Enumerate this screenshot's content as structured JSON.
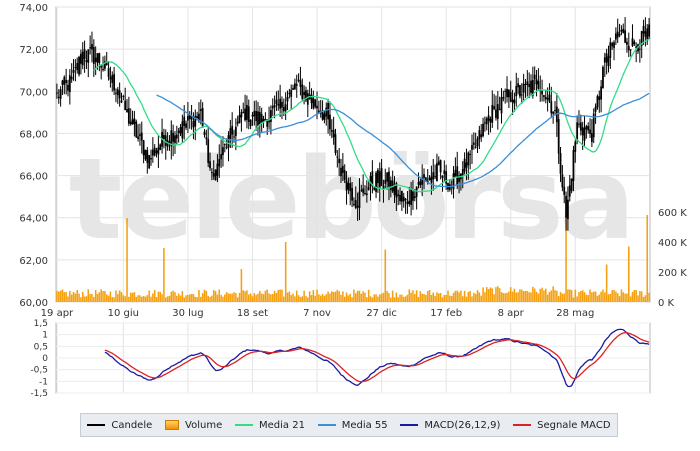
{
  "watermark": "telebörsa",
  "chart_data": [
    {
      "type": "candlestick",
      "panel": "price",
      "y_ticks": [
        "74,00",
        "72,00",
        "70,00",
        "68,00",
        "66,00",
        "64,00",
        "62,00",
        "60,00"
      ],
      "y_tick_values": [
        74,
        72,
        70,
        68,
        66,
        64,
        62,
        60
      ],
      "ylim": [
        60,
        74
      ],
      "volume_ticks": [
        "600 K",
        "400 K",
        "200 K",
        "0 K"
      ],
      "volume_tick_values": [
        600,
        400,
        200,
        0
      ],
      "volume_ylim": [
        0,
        600
      ],
      "x_ticks": [
        "19 apr",
        "10 giu",
        "30 lug",
        "18 set",
        "7 nov",
        "27 dic",
        "17 feb",
        "8 apr",
        "28 mag"
      ],
      "x_tick_index": [
        0,
        36,
        71,
        106,
        141,
        176,
        211,
        246,
        281
      ],
      "n_bars": 322,
      "close_anchors": [
        {
          "i": 0,
          "v": 69.8
        },
        {
          "i": 8,
          "v": 70.5
        },
        {
          "i": 14,
          "v": 71.8
        },
        {
          "i": 22,
          "v": 71.6
        },
        {
          "i": 32,
          "v": 70.2
        },
        {
          "i": 40,
          "v": 68.5
        },
        {
          "i": 50,
          "v": 66.8
        },
        {
          "i": 58,
          "v": 67.8
        },
        {
          "i": 68,
          "v": 68.3
        },
        {
          "i": 78,
          "v": 69.0
        },
        {
          "i": 84,
          "v": 65.8
        },
        {
          "i": 92,
          "v": 67.5
        },
        {
          "i": 102,
          "v": 69.0
        },
        {
          "i": 112,
          "v": 68.6
        },
        {
          "i": 122,
          "v": 69.4
        },
        {
          "i": 130,
          "v": 70.2
        },
        {
          "i": 138,
          "v": 69.6
        },
        {
          "i": 146,
          "v": 68.8
        },
        {
          "i": 154,
          "v": 66.3
        },
        {
          "i": 162,
          "v": 64.8
        },
        {
          "i": 172,
          "v": 65.8
        },
        {
          "i": 180,
          "v": 65.7
        },
        {
          "i": 188,
          "v": 64.6
        },
        {
          "i": 196,
          "v": 65.6
        },
        {
          "i": 206,
          "v": 66.2
        },
        {
          "i": 214,
          "v": 65.6
        },
        {
          "i": 224,
          "v": 66.8
        },
        {
          "i": 234,
          "v": 68.8
        },
        {
          "i": 244,
          "v": 69.7
        },
        {
          "i": 252,
          "v": 70.0
        },
        {
          "i": 262,
          "v": 70.4
        },
        {
          "i": 270,
          "v": 69.0
        },
        {
          "i": 276,
          "v": 64.0
        },
        {
          "i": 282,
          "v": 68.4
        },
        {
          "i": 290,
          "v": 68.0
        },
        {
          "i": 296,
          "v": 71.0
        },
        {
          "i": 304,
          "v": 72.8
        },
        {
          "i": 312,
          "v": 72.2
        },
        {
          "i": 321,
          "v": 72.6
        }
      ],
      "volume_spikes": [
        {
          "i": 38,
          "v": 560
        },
        {
          "i": 58,
          "v": 360
        },
        {
          "i": 100,
          "v": 220
        },
        {
          "i": 124,
          "v": 400
        },
        {
          "i": 178,
          "v": 350
        },
        {
          "i": 276,
          "v": 560
        },
        {
          "i": 298,
          "v": 250
        },
        {
          "i": 310,
          "v": 370
        },
        {
          "i": 320,
          "v": 580
        }
      ],
      "series": [
        {
          "name": "Candele",
          "color": "#000000"
        },
        {
          "name": "Volume",
          "color": "#f39200"
        },
        {
          "name": "Media 21",
          "color": "#33dd88",
          "period": 21
        },
        {
          "name": "Media 55",
          "color": "#3b8fd8",
          "period": 55
        }
      ]
    },
    {
      "type": "line",
      "panel": "macd",
      "y_ticks": [
        "1,5",
        "1",
        "0,5",
        "0",
        "-0,5",
        "-1",
        "-1,5"
      ],
      "y_tick_values": [
        1.5,
        1,
        0.5,
        0,
        -0.5,
        -1,
        -1.5
      ],
      "ylim": [
        -1.5,
        1.5
      ],
      "series": [
        {
          "name": "MACD(26,12,9)",
          "color": "#1a1aa0"
        },
        {
          "name": "Segnale MACD",
          "color": "#dd2222"
        }
      ]
    }
  ],
  "legend": [
    {
      "label": "Candele",
      "kind": "line",
      "color": "#000000"
    },
    {
      "label": "Volume",
      "kind": "box",
      "color": "#f39200"
    },
    {
      "label": "Media 21",
      "kind": "line",
      "color": "#33dd88"
    },
    {
      "label": "Media 55",
      "kind": "line",
      "color": "#3b8fd8"
    },
    {
      "label": "MACD(26,12,9)",
      "kind": "line",
      "color": "#1a1aa0"
    },
    {
      "label": "Segnale MACD",
      "kind": "line",
      "color": "#dd2222"
    }
  ]
}
